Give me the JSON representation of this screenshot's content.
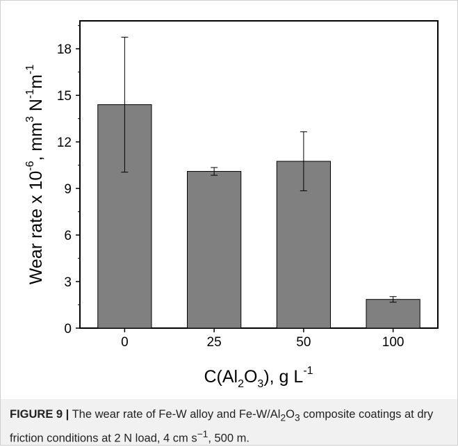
{
  "chart_data": {
    "type": "bar",
    "categories": [
      "0",
      "25",
      "50",
      "100"
    ],
    "values": [
      14.4,
      10.1,
      10.75,
      1.85
    ],
    "errors": [
      4.35,
      0.25,
      1.9,
      0.18
    ],
    "ylim": [
      0,
      19.8
    ],
    "yticks": [
      "0",
      "3",
      "6",
      "9",
      "12",
      "15",
      "18"
    ],
    "grid": false,
    "bar_color": "#808080",
    "xlabel": {
      "pre": "C(Al",
      "sub1": "2",
      "mid": "O",
      "sub2": "3",
      "post": "), g L",
      "sup": "-1"
    },
    "ylabel": {
      "pre": "Wear rate x 10",
      "sup1": "-6",
      "mid1": ", mm",
      "sup2": "3",
      "mid2": " N",
      "sup3": "-1",
      "mid3": "m",
      "sup4": "-1"
    }
  },
  "caption": {
    "label": "FIGURE 9 |",
    "text1": " The wear rate of Fe-W alloy and Fe-W/Al",
    "sub1": "2",
    "text2": "O",
    "sub2": "3",
    "text3": " composite coatings at dry friction conditions at 2 N load, 4 cm s",
    "sup1": "−1",
    "text4": ", 500 m."
  }
}
